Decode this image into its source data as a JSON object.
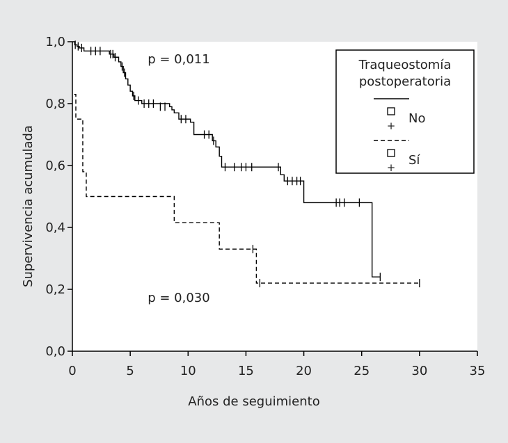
{
  "chart_data": {
    "type": "line",
    "subtype": "kaplan-meier",
    "title": "",
    "xlabel": "Años de seguimiento",
    "ylabel": "Supervivencia acumulada",
    "xlim": [
      0,
      35
    ],
    "ylim": [
      0,
      1
    ],
    "x_ticks": [
      0,
      5,
      10,
      15,
      20,
      25,
      30,
      35
    ],
    "x_tick_labels": [
      "0",
      "5",
      "10",
      "15",
      "20",
      "25",
      "30",
      "35"
    ],
    "y_ticks": [
      0,
      0.2,
      0.4,
      0.6,
      0.8,
      1.0
    ],
    "y_tick_labels": [
      "0,0",
      "0,2",
      "0,4",
      "0,6",
      "0,8",
      "1,0"
    ],
    "grid": false,
    "legend": {
      "title_lines": [
        "Traqueostomía",
        "postoperatoria"
      ],
      "placement": "top-right",
      "entries": [
        {
          "label": "No",
          "line_style": "solid",
          "symbols": [
            "□",
            "+"
          ]
        },
        {
          "label": "Sí",
          "line_style": "dashed",
          "symbols": [
            "□",
            "+"
          ]
        }
      ]
    },
    "annotations": [
      {
        "text": "p = 0,011",
        "x": 9.2,
        "y": 0.93
      },
      {
        "text": "p = 0,030",
        "x": 9.2,
        "y": 0.16
      }
    ],
    "series": [
      {
        "name": "No",
        "line_style": "solid",
        "steps": [
          [
            0,
            1.0
          ],
          [
            0.2,
            0.99
          ],
          [
            0.4,
            0.985
          ],
          [
            0.6,
            0.98
          ],
          [
            1.0,
            0.97
          ],
          [
            3.2,
            0.96
          ],
          [
            3.6,
            0.95
          ],
          [
            4.0,
            0.935
          ],
          [
            4.2,
            0.92
          ],
          [
            4.4,
            0.9
          ],
          [
            4.6,
            0.88
          ],
          [
            4.8,
            0.86
          ],
          [
            5.0,
            0.84
          ],
          [
            5.2,
            0.825
          ],
          [
            5.4,
            0.81
          ],
          [
            6.0,
            0.8
          ],
          [
            8.4,
            0.79
          ],
          [
            8.6,
            0.78
          ],
          [
            8.8,
            0.77
          ],
          [
            9.2,
            0.75
          ],
          [
            10.2,
            0.74
          ],
          [
            10.5,
            0.7
          ],
          [
            12.1,
            0.68
          ],
          [
            12.4,
            0.66
          ],
          [
            12.7,
            0.63
          ],
          [
            12.9,
            0.595
          ],
          [
            18.0,
            0.57
          ],
          [
            18.3,
            0.55
          ],
          [
            20.0,
            0.48
          ],
          [
            25.9,
            0.24
          ],
          [
            26.6,
            0.24
          ]
        ],
        "censored": [
          [
            0.25,
            0.99
          ],
          [
            0.5,
            0.985
          ],
          [
            0.8,
            0.98
          ],
          [
            1.6,
            0.97
          ],
          [
            2.0,
            0.97
          ],
          [
            2.4,
            0.97
          ],
          [
            3.3,
            0.96
          ],
          [
            3.5,
            0.96
          ],
          [
            3.7,
            0.95
          ],
          [
            4.3,
            0.92
          ],
          [
            4.5,
            0.9
          ],
          [
            5.3,
            0.825
          ],
          [
            5.7,
            0.81
          ],
          [
            6.2,
            0.8
          ],
          [
            6.6,
            0.8
          ],
          [
            7.0,
            0.8
          ],
          [
            7.6,
            0.79
          ],
          [
            8.0,
            0.79
          ],
          [
            9.4,
            0.75
          ],
          [
            9.8,
            0.75
          ],
          [
            11.4,
            0.7
          ],
          [
            11.8,
            0.7
          ],
          [
            12.2,
            0.68
          ],
          [
            13.2,
            0.595
          ],
          [
            14.0,
            0.595
          ],
          [
            14.6,
            0.595
          ],
          [
            15.0,
            0.595
          ],
          [
            15.5,
            0.595
          ],
          [
            17.8,
            0.595
          ],
          [
            18.6,
            0.55
          ],
          [
            19.0,
            0.55
          ],
          [
            19.4,
            0.55
          ],
          [
            19.7,
            0.55
          ],
          [
            22.8,
            0.48
          ],
          [
            23.1,
            0.48
          ],
          [
            23.5,
            0.48
          ],
          [
            24.8,
            0.48
          ],
          [
            26.6,
            0.24
          ]
        ]
      },
      {
        "name": "Sí",
        "line_style": "dashed",
        "steps": [
          [
            0.15,
            0.83
          ],
          [
            0.3,
            0.75
          ],
          [
            0.9,
            0.58
          ],
          [
            1.2,
            0.5
          ],
          [
            8.8,
            0.415
          ],
          [
            12.7,
            0.33
          ],
          [
            15.9,
            0.22
          ],
          [
            30.0,
            0.22
          ]
        ],
        "censored": [
          [
            15.6,
            0.33
          ],
          [
            16.2,
            0.22
          ],
          [
            30.0,
            0.22
          ]
        ]
      }
    ]
  }
}
